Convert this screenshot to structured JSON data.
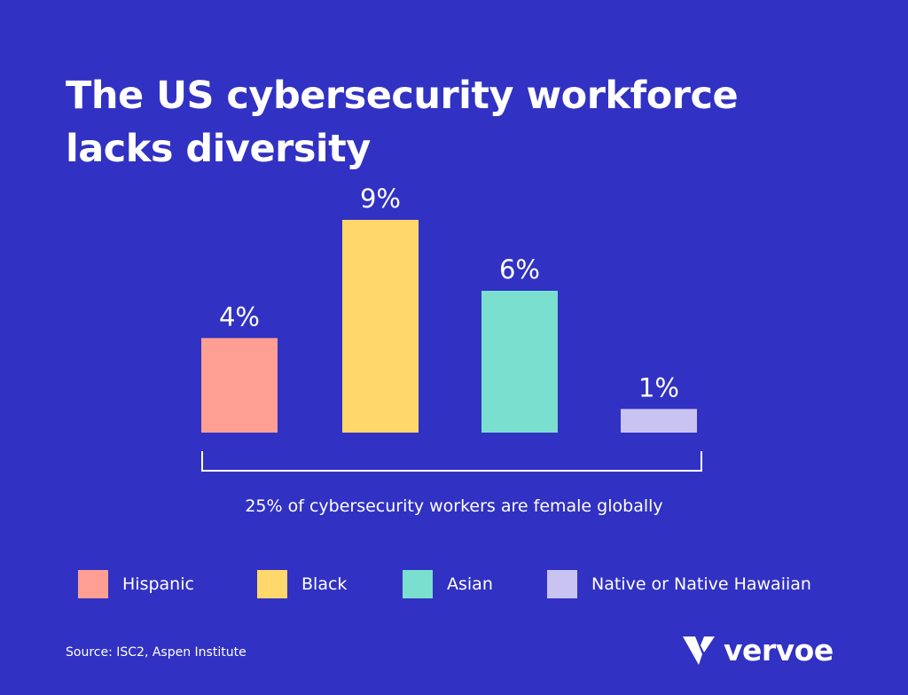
{
  "title": {
    "line1": "The US cybersecurity workforce",
    "line2": "lacks diversity"
  },
  "chart_data": {
    "type": "bar",
    "categories": [
      "Hispanic",
      "Black",
      "Asian",
      "Native or Native Hawaiian"
    ],
    "values": [
      4,
      9,
      6,
      1
    ],
    "value_labels": [
      "4%",
      "9%",
      "6%",
      "1%"
    ],
    "colors": [
      "#ff9f94",
      "#ffd76a",
      "#7bdfcf",
      "#c9c3f2"
    ],
    "ylim": [
      0,
      9
    ],
    "grid": false,
    "legend": "bottom",
    "annotation": "25% of cybersecurity workers are female globally"
  },
  "legend": [
    {
      "label": "Hispanic",
      "color": "#ff9f94"
    },
    {
      "label": "Black",
      "color": "#ffd76a"
    },
    {
      "label": "Asian",
      "color": "#7bdfcf"
    },
    {
      "label": "Native or Native Hawaiian",
      "color": "#c9c3f2"
    }
  ],
  "source": "Source: ISC2, Aspen Institute",
  "logo": {
    "text": "vervoe",
    "icon": "vervoe-v-logo-icon"
  },
  "colors": {
    "background": "#3131c3",
    "text": "#ffffff"
  }
}
